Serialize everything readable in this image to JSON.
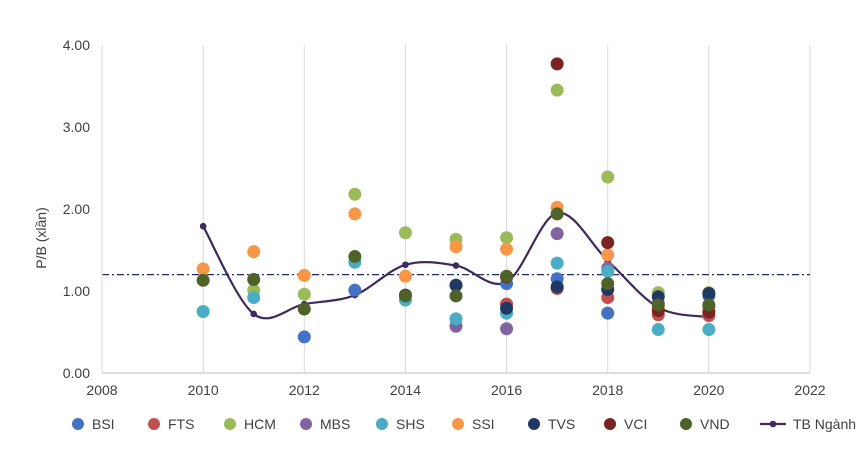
{
  "chart_data": {
    "type": "scatter",
    "title": "",
    "xlabel": "",
    "ylabel": "P/B (xlần)",
    "xlim": [
      2008,
      2022
    ],
    "ylim": [
      0,
      4
    ],
    "x_ticks": [
      "2008",
      "2010",
      "2012",
      "2014",
      "2016",
      "2018",
      "2020",
      "2022"
    ],
    "y_ticks": [
      "0.00",
      "1.00",
      "2.00",
      "3.00",
      "4.00"
    ],
    "grid": "vertical",
    "legend_position": "bottom",
    "reference_line": {
      "y": 1.2,
      "style": "dash-dot",
      "color": "#1f2a6b"
    },
    "series": [
      {
        "name": "BSI",
        "color": "#4472c4",
        "type": "scatter",
        "points": [
          [
            2012,
            0.44
          ],
          [
            2013,
            1.01
          ],
          [
            2015,
            1.07
          ],
          [
            2016,
            1.09
          ],
          [
            2017,
            1.15
          ],
          [
            2018,
            0.73
          ],
          [
            2020,
            0.94
          ]
        ]
      },
      {
        "name": "FTS",
        "color": "#c0504d",
        "type": "scatter",
        "points": [
          [
            2016,
            0.84
          ],
          [
            2017,
            1.03
          ],
          [
            2018,
            0.92
          ],
          [
            2019,
            0.71
          ],
          [
            2020,
            0.7
          ]
        ]
      },
      {
        "name": "HCM",
        "color": "#9bbb59",
        "type": "scatter",
        "points": [
          [
            2011,
            1.01
          ],
          [
            2012,
            0.96
          ],
          [
            2013,
            2.18
          ],
          [
            2014,
            1.71
          ],
          [
            2015,
            1.63
          ],
          [
            2016,
            1.65
          ],
          [
            2017,
            3.45
          ],
          [
            2018,
            2.39
          ],
          [
            2019,
            0.98
          ],
          [
            2020,
            0.98
          ]
        ]
      },
      {
        "name": "MBS",
        "color": "#8064a2",
        "type": "scatter",
        "points": [
          [
            2015,
            0.57
          ],
          [
            2016,
            0.54
          ],
          [
            2017,
            1.7
          ],
          [
            2018,
            1.28
          ],
          [
            2019,
            0.85
          ],
          [
            2020,
            0.8
          ]
        ]
      },
      {
        "name": "SHS",
        "color": "#4bacc6",
        "type": "scatter",
        "points": [
          [
            2010,
            0.75
          ],
          [
            2011,
            0.92
          ],
          [
            2013,
            1.35
          ],
          [
            2014,
            0.89
          ],
          [
            2015,
            0.66
          ],
          [
            2016,
            0.73
          ],
          [
            2017,
            1.34
          ],
          [
            2018,
            1.24
          ],
          [
            2019,
            0.53
          ],
          [
            2020,
            0.53
          ]
        ]
      },
      {
        "name": "SSI",
        "color": "#f79646",
        "type": "scatter",
        "points": [
          [
            2010,
            1.27
          ],
          [
            2011,
            1.48
          ],
          [
            2012,
            1.19
          ],
          [
            2013,
            1.94
          ],
          [
            2014,
            1.18
          ],
          [
            2015,
            1.54
          ],
          [
            2016,
            1.51
          ],
          [
            2017,
            2.02
          ],
          [
            2018,
            1.44
          ],
          [
            2019,
            0.8
          ],
          [
            2020,
            0.76
          ]
        ]
      },
      {
        "name": "TVS",
        "color": "#1f3864",
        "type": "scatter",
        "points": [
          [
            2014,
            0.95
          ],
          [
            2015,
            1.07
          ],
          [
            2016,
            0.79
          ],
          [
            2017,
            1.05
          ],
          [
            2018,
            1.02
          ],
          [
            2019,
            0.93
          ],
          [
            2020,
            0.97
          ]
        ]
      },
      {
        "name": "VCI",
        "color": "#7b2320",
        "type": "scatter",
        "points": [
          [
            2016,
            1.17
          ],
          [
            2017,
            3.77
          ],
          [
            2018,
            1.59
          ],
          [
            2019,
            0.76
          ],
          [
            2020,
            0.74
          ]
        ]
      },
      {
        "name": "VND",
        "color": "#4f6228",
        "type": "scatter",
        "points": [
          [
            2010,
            1.13
          ],
          [
            2011,
            1.14
          ],
          [
            2012,
            0.78
          ],
          [
            2013,
            1.42
          ],
          [
            2014,
            0.94
          ],
          [
            2015,
            0.94
          ],
          [
            2016,
            1.18
          ],
          [
            2017,
            1.94
          ],
          [
            2018,
            1.09
          ],
          [
            2019,
            0.83
          ],
          [
            2020,
            0.83
          ]
        ]
      },
      {
        "name": "TB Ngành",
        "color": "#3d2a5c",
        "type": "line",
        "smooth": true,
        "points": [
          [
            2010,
            1.79
          ],
          [
            2011,
            0.72
          ],
          [
            2012,
            0.84
          ],
          [
            2013,
            0.95
          ],
          [
            2014,
            1.32
          ],
          [
            2015,
            1.31
          ],
          [
            2016,
            1.11
          ],
          [
            2017,
            1.95
          ],
          [
            2018,
            1.37
          ],
          [
            2019,
            0.8
          ],
          [
            2020,
            0.68
          ]
        ]
      }
    ]
  }
}
